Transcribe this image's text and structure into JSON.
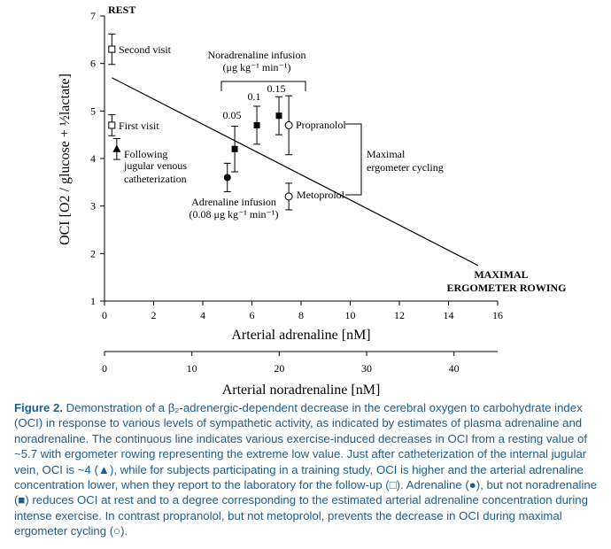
{
  "chart_data": {
    "type": "scatter",
    "title": "",
    "ylabel": "OCI [O2 / glucose + ½lactate]",
    "xlabel": "Arterial adrenaline [nM]",
    "x2label": "Arterial noradrenaline [nM]",
    "xlim": [
      0,
      16
    ],
    "ylim": [
      1,
      7
    ],
    "x2lim": [
      0,
      45
    ],
    "xticks": [
      "0",
      "2",
      "4",
      "6",
      "8",
      "10",
      "12",
      "14",
      "16"
    ],
    "yticks": [
      "1",
      "2",
      "3",
      "4",
      "5",
      "6",
      "7"
    ],
    "x2ticks": [
      "0",
      "10",
      "20",
      "30",
      "40"
    ],
    "regression_line": {
      "x": [
        0.3,
        15.2
      ],
      "y": [
        5.7,
        1.75
      ]
    },
    "series": [
      {
        "marker": "open-square",
        "points": [
          {
            "x": 0.3,
            "y": 6.3,
            "err": 0.32,
            "label": "Second visit"
          },
          {
            "x": 0.3,
            "y": 4.7,
            "err": 0.22,
            "label": "First visit"
          }
        ]
      },
      {
        "marker": "filled-triangle",
        "points": [
          {
            "x": 0.5,
            "y": 4.2,
            "err": 0.22,
            "label": "Following jugular venous catheterization"
          }
        ]
      },
      {
        "marker": "filled-square",
        "points": [
          {
            "x": 5.3,
            "y": 4.2,
            "err": 0.48,
            "label": "0.05"
          },
          {
            "x": 6.2,
            "y": 4.7,
            "err": 0.4,
            "label": "0.1"
          },
          {
            "x": 7.1,
            "y": 4.9,
            "err": 0.4,
            "label": "0.15"
          }
        ]
      },
      {
        "marker": "filled-circle",
        "points": [
          {
            "x": 5.0,
            "y": 3.6,
            "err": 0.3,
            "label": "Adrenaline infusion"
          }
        ]
      },
      {
        "marker": "open-circle",
        "points": [
          {
            "x": 7.5,
            "y": 4.7,
            "err": 0.62,
            "label": "Propranolol"
          },
          {
            "x": 7.5,
            "y": 3.2,
            "err": 0.28,
            "label": "Metoprolol"
          }
        ]
      }
    ],
    "annotations": {
      "rest": "REST",
      "second_visit": "Second visit",
      "first_visit": "First visit",
      "jugular_1": "Following",
      "jugular_2": "jugular venous",
      "jugular_3": "catheterization",
      "nor_title_1": "Noradrenaline infusion",
      "nor_title_2": "(μg kg⁻¹ min⁻¹)",
      "dose_005": "0.05",
      "dose_01": "0.1",
      "dose_015": "0.15",
      "adr_inf_1": "Adrenaline infusion",
      "adr_inf_2": "(0.08 μg kg⁻¹ min⁻¹)",
      "propranolol": "Propranolol",
      "metoprolol": "Metoprolol",
      "maximal_ergometer_1": "Maximal",
      "maximal_ergometer_2": "ergometer cycling",
      "maximal_rowing_1": "MAXIMAL",
      "maximal_rowing_2": "ERGOMETER ROWING"
    }
  },
  "caption": {
    "label": "Figure 2.",
    "text": "Demonstration of a β₂-adrenergic-dependent decrease in the cerebral oxygen to carbohydrate index (OCI) in response to various levels of sympathetic activity, as indicated by estimates of plasma adrenaline and noradrenaline. The continuous line indicates various exercise-induced decreases in OCI from a resting value of ~5.7 with ergometer rowing representing the extreme low value. Just after catheterization of the internal jugular vein, OCI is ~4 (▲), while for subjects participating in a training study, OCI is higher and the arterial adrenaline concentration lower, when they report to the laboratory for the follow-up (□). Adrenaline (●), but not noradrenaline (■) reduces OCI at rest and to a degree corresponding to the estimated arterial adrenaline concentration during intense exercise. In contrast propranolol, but not metoprolol, prevents the decrease in OCI during maximal ergometer cycling (○)."
  }
}
